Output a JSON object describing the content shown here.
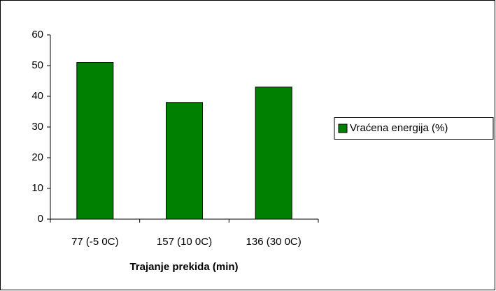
{
  "chart_data": {
    "type": "bar",
    "xlabel": "Trajanje prekida (min)",
    "categories": [
      "77 (-5 0C)",
      "157 (10 0C)",
      "136 (30 0C)"
    ],
    "series": [
      {
        "name": "Vraćena energija (%)",
        "color": "#008000",
        "values": [
          51,
          38,
          43
        ]
      }
    ],
    "ylim": [
      0,
      60
    ],
    "yticks": [
      0,
      10,
      20,
      30,
      40,
      50,
      60
    ],
    "grid": false,
    "legend": "right"
  }
}
